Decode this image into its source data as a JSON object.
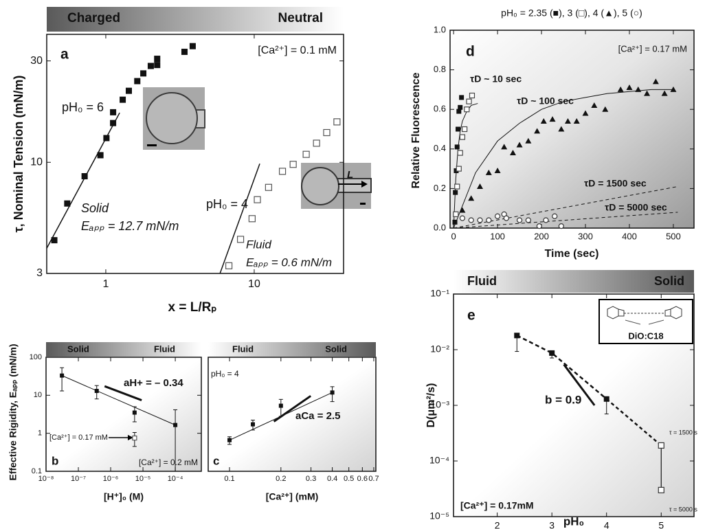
{
  "chart_data": [
    {
      "type": "scatter",
      "xlabel": "x = L/Rₚ",
      "ylabel": "τ, Nominal Tension (mN/m)",
      "xlog": true,
      "ylog": true,
      "xlim": [
        0.4,
        40
      ],
      "ylim": [
        3,
        40
      ],
      "xticks": [
        1,
        10
      ],
      "yticks": [
        3,
        10,
        30
      ],
      "series": [
        {
          "marker": "square-filled",
          "color": "#111111",
          "x": [
            0.45,
            0.55,
            0.72,
            0.92,
            1.01,
            1.12,
            1.12,
            1.3,
            1.43,
            1.63,
            1.79,
            2.01,
            2.22,
            2.22,
            3.39,
            3.85
          ],
          "values": [
            4.3,
            6.4,
            8.6,
            10.8,
            13,
            15.3,
            17.2,
            19.7,
            21.7,
            24.1,
            26.2,
            28.4,
            28.7,
            30.7,
            33.1,
            35.2
          ]
        },
        {
          "marker": "square-open",
          "color": "#555555",
          "x": [
            6.75,
            8.09,
            9.68,
            10.5,
            12.5,
            15.5,
            18.3,
            22.4,
            26.3,
            30.8,
            36.1
          ],
          "values": [
            3.26,
            4.34,
            5.43,
            6.67,
            7.62,
            9.07,
            9.78,
            10.9,
            12.3,
            13.8,
            15.5
          ]
        }
      ],
      "fits": [
        {
          "x": [
            0.4,
            1.24
          ],
          "values": [
            3.94,
            17.1
          ],
          "width": 1.5
        },
        {
          "x": [
            5.88,
            10.9
          ],
          "values": [
            3,
            9.85
          ],
          "width": 1.5
        }
      ],
      "annotations": [
        "Charged",
        "Neutral",
        "a",
        "[Ca²⁺] = 0.1 mM",
        "pH₀ = 6",
        "Solid",
        "Eₐₚₚ = 12.7 mN/m",
        "pH₀ = 4",
        "Fluid",
        "Eₐₚₚ = 0.6 mN/m",
        "L"
      ]
    },
    {
      "type": "scatter",
      "xlabel": "[H⁺]₀ (M)",
      "ylabel": "Effective Rigidity, Eₐₚₚ (mN/m)",
      "xlog": true,
      "ylog": true,
      "xlim": [
        1e-08,
        0.00064
      ],
      "ylim": [
        0.1,
        100
      ],
      "xticks": [
        {
          "value": 1e-08,
          "label": "10⁻⁸"
        },
        {
          "value": 1e-07,
          "label": "10⁻⁷"
        },
        {
          "value": 1e-06,
          "label": "10⁻⁶"
        },
        {
          "value": 1e-05,
          "label": "10⁻⁵"
        },
        {
          "value": 0.0001,
          "label": "10⁻⁴"
        }
      ],
      "yticks": [
        0.1,
        1,
        10,
        100
      ],
      "series": [
        {
          "marker": "square-filled",
          "color": "#111111",
          "x": [
            3.1e-08,
            3.7e-07,
            5.5e-06,
            0.0001
          ],
          "values": [
            33,
            13,
            3.5,
            1.65
          ],
          "errors": [
            20,
            5,
            1.5,
            2.5
          ]
        },
        {
          "marker": "square-open",
          "color": "#555555",
          "x": [
            5.5e-06
          ],
          "values": [
            0.75
          ],
          "errors": [
            0.3
          ]
        }
      ],
      "fits": [
        {
          "x": [
            3.1e-08,
            0.0001
          ],
          "values": [
            33,
            1.65
          ],
          "width": 1
        },
        {
          "x": [
            6.5e-07,
            9.1e-06
          ],
          "values": [
            17.3,
            7.4
          ],
          "width": 3
        }
      ],
      "annotations": [
        "Solid",
        "Fluid",
        "b",
        "[Ca²⁺] = 0.2 mM",
        "[Ca²⁺] = 0.17 mM",
        "aH+ = – 0.34"
      ]
    },
    {
      "type": "scatter",
      "xlabel": "[Ca²⁺] (mM)",
      "xlog": true,
      "ylog": true,
      "xlim": [
        0.075,
        0.72
      ],
      "ylim": [
        0.1,
        100
      ],
      "xticks": [
        0.1,
        0.2,
        0.3,
        0.4,
        0.5,
        0.6,
        0.7
      ],
      "series": [
        {
          "marker": "square-filled",
          "color": "#111111",
          "x": [
            0.1,
            0.137,
            0.2,
            0.4
          ],
          "values": [
            0.66,
            1.72,
            5.3,
            11.8
          ],
          "errors": [
            0.15,
            0.5,
            2.5,
            5
          ]
        }
      ],
      "fits": [
        {
          "x": [
            0.1,
            0.4
          ],
          "values": [
            0.66,
            11.8
          ],
          "width": 1
        },
        {
          "x": [
            0.182,
            0.299
          ],
          "values": [
            2.04,
            9.6
          ],
          "width": 3
        }
      ],
      "annotations": [
        "Fluid",
        "Solid",
        "c",
        "pH₀ = 4",
        "aCa = 2.5"
      ]
    },
    {
      "type": "scatter",
      "title": "pH₀ = 2.35 (■), 3 (□), 4 (▲), 5 (○)",
      "xlabel": "Time (sec)",
      "ylabel": "Relative Fluorescence",
      "xlim": [
        -8,
        547
      ],
      "ylim": [
        0,
        1
      ],
      "xticks": [
        0,
        100,
        200,
        300,
        400,
        500
      ],
      "yticks": [
        {
          "value": 0,
          "label": "0.0"
        },
        0.2,
        0.4,
        0.6,
        0.8,
        {
          "value": 1,
          "label": "1.0"
        }
      ],
      "series": [
        {
          "marker": "square-filled",
          "color": "#111111",
          "x": [
            3,
            4,
            6,
            8,
            10,
            12,
            15,
            18
          ],
          "values": [
            0.03,
            0.18,
            0.29,
            0.41,
            0.5,
            0.59,
            0.61,
            0.66
          ]
        },
        {
          "marker": "square-open",
          "color": "#444444",
          "x": [
            5,
            8,
            12,
            15,
            20,
            25,
            30,
            35,
            42
          ],
          "values": [
            0.07,
            0.21,
            0.3,
            0.38,
            0.46,
            0.5,
            0.6,
            0.64,
            0.67
          ]
        },
        {
          "marker": "triangle-filled",
          "color": "#111111",
          "x": [
            20,
            40,
            60,
            80,
            100,
            115,
            135,
            150,
            170,
            190,
            205,
            225,
            245,
            260,
            280,
            300,
            320,
            345,
            380,
            400,
            420,
            440,
            460,
            480,
            500
          ],
          "values": [
            0.09,
            0.15,
            0.21,
            0.28,
            0.29,
            0.41,
            0.38,
            0.42,
            0.44,
            0.49,
            0.54,
            0.55,
            0.5,
            0.54,
            0.54,
            0.58,
            0.62,
            0.6,
            0.7,
            0.71,
            0.7,
            0.68,
            0.74,
            0.68,
            0.7
          ]
        },
        {
          "marker": "circle-open",
          "color": "#333333",
          "x": [
            20,
            40,
            60,
            80,
            100,
            115,
            120,
            150,
            170,
            195,
            210,
            230,
            245
          ],
          "values": [
            0.05,
            0.04,
            0.04,
            0.04,
            0.06,
            0.07,
            0.05,
            0.04,
            0.04,
            0.01,
            0.04,
            0.06,
            0.01
          ]
        }
      ],
      "fits": [
        {
          "x": [
            0,
            5,
            10,
            15,
            20,
            30,
            40,
            55
          ],
          "values": [
            0,
            0.25,
            0.4,
            0.49,
            0.54,
            0.59,
            0.62,
            0.63
          ],
          "width": 1
        },
        {
          "x": [
            0,
            50,
            100,
            150,
            200,
            250,
            300,
            350,
            400,
            450,
            500
          ],
          "values": [
            0,
            0.28,
            0.44,
            0.53,
            0.6,
            0.64,
            0.66,
            0.68,
            0.69,
            0.7,
            0.7
          ],
          "width": 1
        },
        {
          "x": [
            0,
            510
          ],
          "values": [
            0,
            0.21
          ],
          "width": 1,
          "dash": true
        },
        {
          "x": [
            0,
            510
          ],
          "values": [
            0,
            0.08
          ],
          "width": 1,
          "dash": true
        }
      ],
      "annotations": [
        "d",
        "[Ca²⁺] = 0.17 mM",
        "τD ~ 10 sec",
        "τD ~ 100 sec",
        "τD = 1500 sec",
        "τD = 5000 sec"
      ]
    },
    {
      "type": "scatter",
      "xlabel": "pH₀",
      "ylabel": "D(μm²/s)",
      "ylog": true,
      "xlim": [
        1.2,
        5.6
      ],
      "ylim": [
        1e-05,
        0.1
      ],
      "xticks": [
        2,
        3,
        4,
        5
      ],
      "yticks": [
        {
          "value": 1e-05,
          "label": "10⁻⁵"
        },
        {
          "value": 0.0001,
          "label": "10⁻⁴"
        },
        {
          "value": 0.001,
          "label": "10⁻³"
        },
        {
          "value": 0.01,
          "label": "10⁻²"
        },
        {
          "value": 0.1,
          "label": "10⁻¹"
        }
      ],
      "series": [
        {
          "marker": "square-filled",
          "color": "#111111",
          "x": [
            2.36,
            3,
            4
          ],
          "values": [
            0.018,
            0.0087,
            0.0013
          ],
          "errors": [
            0.0087,
            0.0016,
            0.0006
          ],
          "error_dir": "down",
          "line": "dash"
        },
        {
          "marker": "square-open",
          "color": "#333333",
          "x": [
            5,
            5
          ],
          "values": [
            0.00019,
            3e-05
          ],
          "line": "solid"
        }
      ],
      "fits": [
        {
          "x": [
            3.22,
            3.78
          ],
          "values": [
            0.0054,
            0.001
          ],
          "width": 3
        },
        {
          "x": [
            4,
            5
          ],
          "values": [
            0.0013,
            0.00019
          ],
          "width": 2.5,
          "dash": true
        }
      ],
      "annotations": [
        "Fluid",
        "Solid",
        "e",
        "[Ca²⁺] = 0.17mM",
        "τ = 1500 s",
        "τ = 5000 s",
        "b = 0.9",
        "DiO:C18"
      ]
    }
  ]
}
